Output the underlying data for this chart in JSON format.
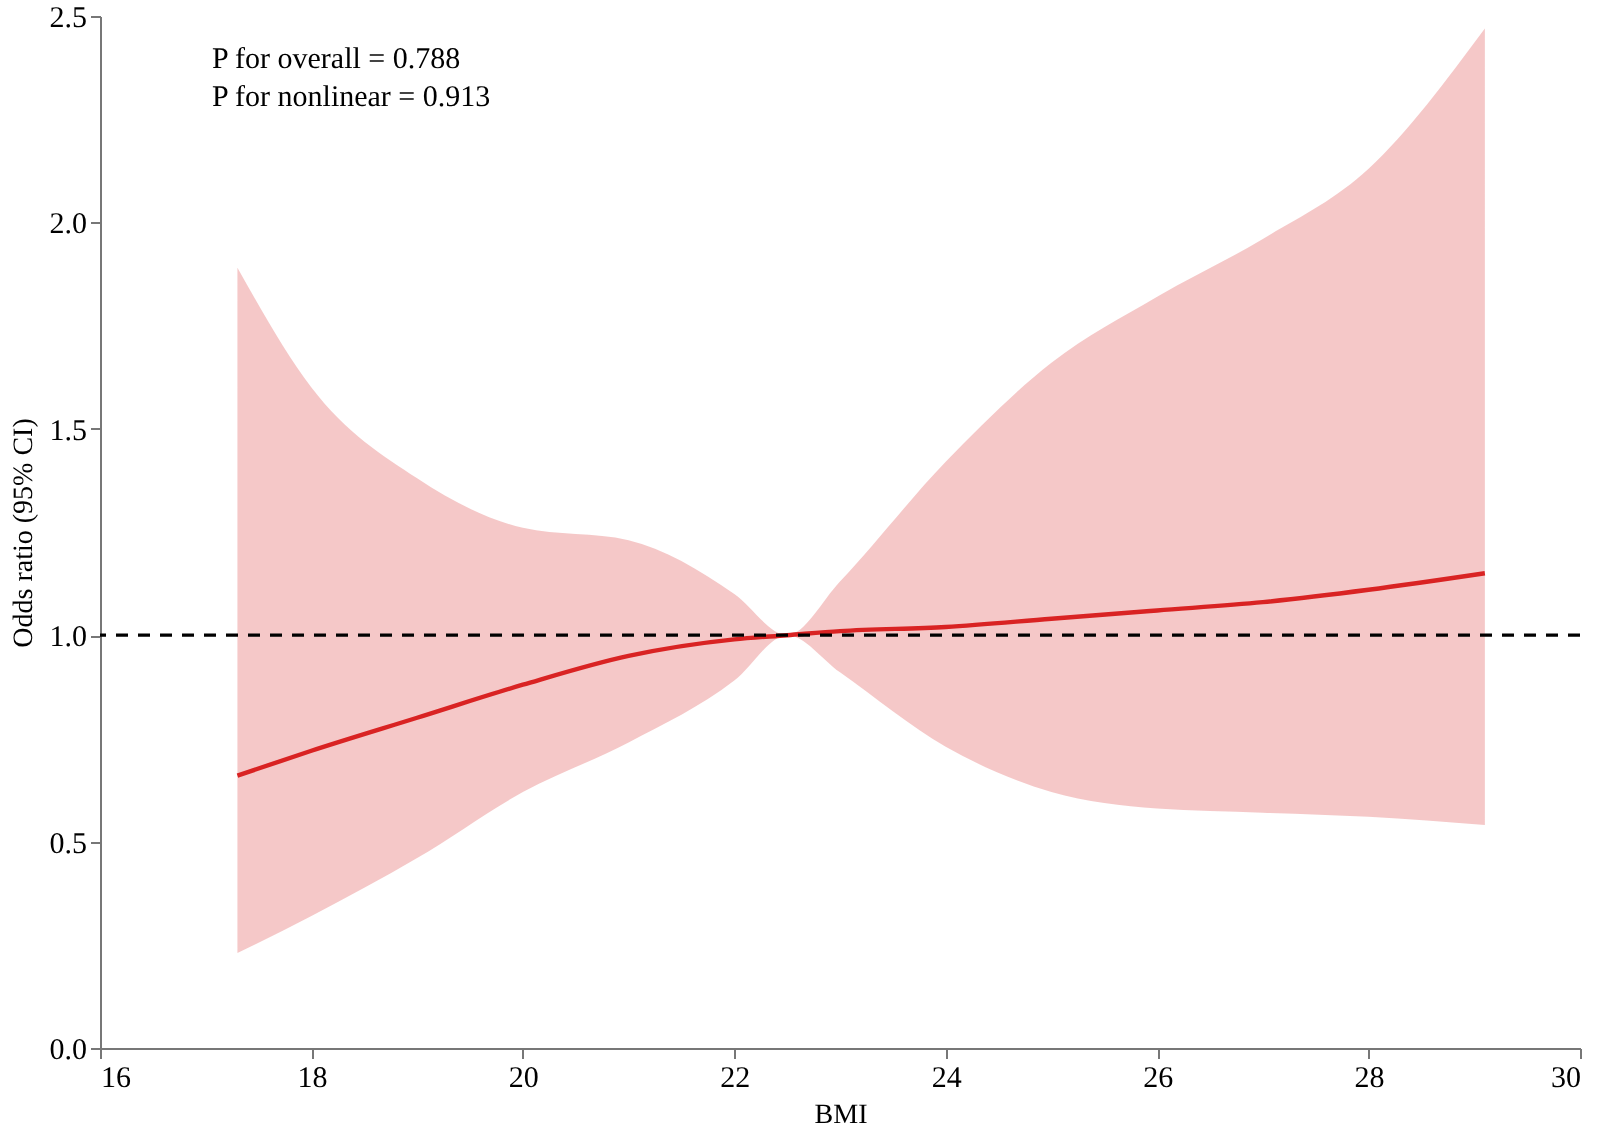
{
  "chart_data": {
    "type": "line",
    "xlabel": "BMI",
    "ylabel": "Odds ratio (95% CI)",
    "annotations": [
      "P for overall = 0.788",
      "P for nonlinear = 0.913"
    ],
    "x": [
      17.3,
      18,
      19,
      20,
      21,
      22,
      22.5,
      23,
      24,
      25,
      26,
      27,
      28,
      29.1
    ],
    "series": [
      {
        "color": "#d92323",
        "values": [
          0.66,
          0.72,
          0.8,
          0.88,
          0.95,
          0.99,
          1.0,
          1.01,
          1.02,
          1.04,
          1.06,
          1.08,
          1.11,
          1.15
        ],
        "upper": [
          1.89,
          1.6,
          1.38,
          1.26,
          1.23,
          1.1,
          1.0,
          1.13,
          1.42,
          1.66,
          1.82,
          1.96,
          2.13,
          2.47
        ],
        "lower": [
          0.23,
          0.32,
          0.46,
          0.62,
          0.74,
          0.89,
          1.0,
          0.91,
          0.73,
          0.62,
          0.58,
          0.57,
          0.56,
          0.54
        ]
      }
    ],
    "xlim": [
      16,
      30
    ],
    "xticks": [
      16,
      18,
      20,
      22,
      24,
      26,
      28,
      30
    ],
    "ylim": [
      0,
      2.5
    ],
    "yticks": [
      {
        "value": 0,
        "label": "0.0"
      },
      {
        "value": 0.5,
        "label": "0.5"
      },
      {
        "value": 1,
        "label": "1.0"
      },
      {
        "value": 1.5,
        "label": "1.5"
      },
      {
        "value": 2,
        "label": "2.0"
      },
      {
        "value": 2.5,
        "label": "2.5"
      }
    ],
    "grid": false,
    "line_style": "solid",
    "marker": "none",
    "ref_lines": [
      {
        "axis": "y",
        "value": 1,
        "color": "#000000",
        "line_style": "dashed"
      }
    ]
  }
}
